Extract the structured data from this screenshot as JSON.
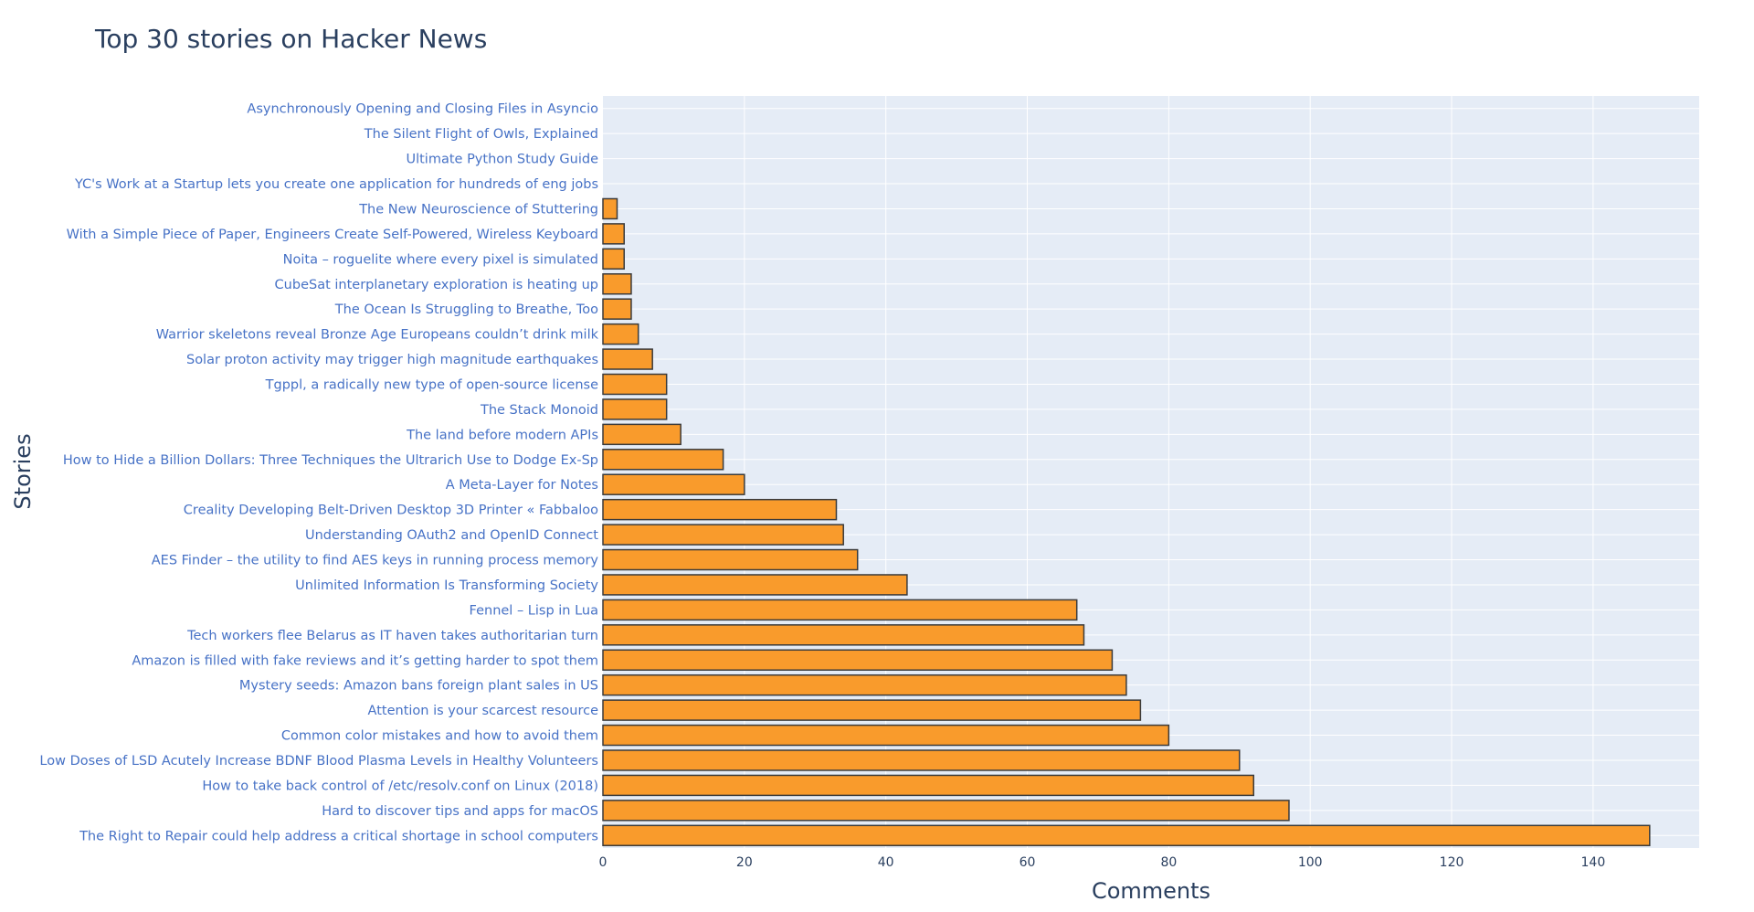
{
  "chart_data": {
    "type": "bar",
    "orientation": "horizontal",
    "title": "Top 30 stories on Hacker News",
    "xlabel": "Comments",
    "ylabel": "Stories",
    "xlim": [
      0,
      155
    ],
    "xticks": [
      0,
      20,
      40,
      60,
      80,
      100,
      120,
      140
    ],
    "grid": true,
    "legend": "none",
    "colors": {
      "bar": "#f99b2c",
      "bar_outline": "#3b3b3b",
      "plot_bg": "#e5ecf6",
      "title": "#2a3f5f",
      "tick_label": "#4772c6"
    },
    "categories": [
      "Asynchronously Opening and Closing Files in Asyncio",
      "The Silent Flight of Owls, Explained",
      "Ultimate Python Study Guide",
      "YC's Work at a Startup lets you create one application for hundreds of eng jobs",
      "The New Neuroscience of Stuttering",
      "With a Simple Piece of Paper, Engineers Create Self-Powered, Wireless Keyboard",
      "Noita – roguelite where every pixel is simulated",
      "CubeSat interplanetary exploration is heating up",
      "The Ocean Is Struggling to Breathe, Too",
      "Warrior skeletons reveal Bronze Age Europeans couldn’t drink milk",
      "Solar proton activity may trigger high magnitude earthquakes",
      "Tgppl, a radically new type of open-source license",
      "The Stack Monoid",
      "The land before modern APIs",
      "How to Hide a Billion Dollars: Three Techniques the Ultrarich Use to Dodge Ex-Sp",
      "A Meta-Layer for Notes",
      "Creality Developing Belt-Driven Desktop 3D Printer « Fabbaloo",
      "Understanding OAuth2 and OpenID Connect",
      "AES Finder – the utility to find AES keys in running process memory",
      "Unlimited Information Is Transforming Society",
      "Fennel – Lisp in Lua",
      "Tech workers flee Belarus as IT haven takes authoritarian turn",
      "Amazon is filled with fake reviews and it’s getting harder to spot them",
      "Mystery seeds: Amazon bans foreign plant sales in US",
      "Attention is your scarcest resource",
      "Common color mistakes and how to avoid them",
      "Low Doses of LSD Acutely Increase BDNF Blood Plasma Levels in Healthy Volunteers",
      "How to take back control of /etc/resolv.conf on Linux (2018)",
      "Hard to discover tips and apps for macOS",
      "The Right to Repair could help address a critical shortage in school computers"
    ],
    "values": [
      0,
      0,
      0,
      0,
      2,
      3,
      3,
      4,
      4,
      5,
      7,
      9,
      9,
      11,
      17,
      20,
      33,
      34,
      36,
      43,
      67,
      68,
      72,
      74,
      76,
      80,
      90,
      92,
      97,
      148
    ]
  }
}
